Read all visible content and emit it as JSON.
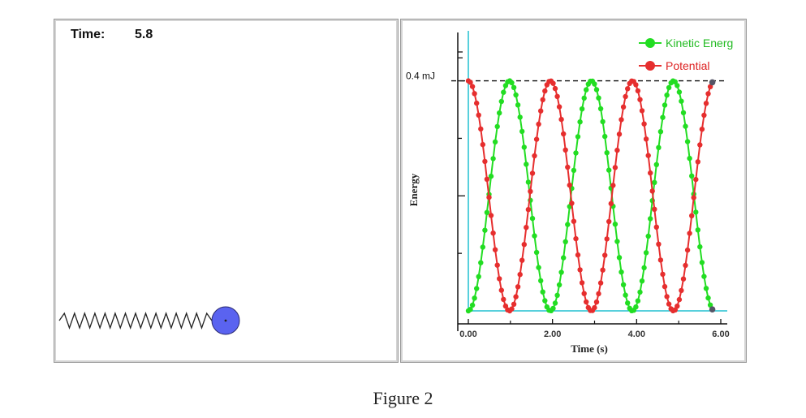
{
  "simulation": {
    "time_label": "Time:",
    "time_value": "5.8",
    "colors": {
      "mass": "#5a63f0",
      "spring": "#222222"
    },
    "mass_position": 1.0
  },
  "chart_data": {
    "type": "line",
    "xlabel": "Time (s)",
    "ylabel": "Energy",
    "x_ticks": [
      "0.00",
      "2.00",
      "4.00",
      "6.00"
    ],
    "xlim": [
      0,
      6
    ],
    "ylim": [
      0,
      0.47
    ],
    "y_reference": {
      "value": 0.4,
      "label": "0.4 mJ",
      "style": "dashed"
    },
    "period_s": 3.9,
    "t_end": 5.8,
    "marker_count": 118,
    "legend_position": "top-right",
    "series": [
      {
        "name": "Kinetic Energ",
        "color": "#22dd22",
        "formula": "0.4*sin^2(2*pi*t/3.9)"
      },
      {
        "name": "Potential",
        "color": "#e62e2e",
        "formula": "0.4*cos^2(2*pi*t/3.9)"
      }
    ],
    "axis_color": "#20c0d0"
  },
  "caption": "Figure 2"
}
